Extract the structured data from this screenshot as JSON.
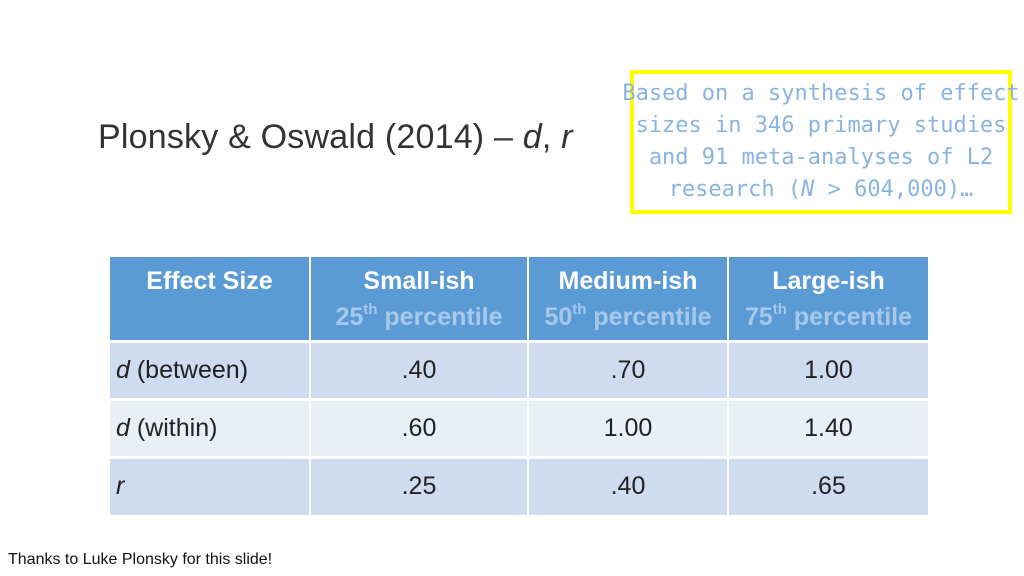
{
  "title": {
    "main": "Plonsky & Oswald (2014) – ",
    "d": "d",
    "sep": ", ",
    "r": "r"
  },
  "callout": {
    "line1": "Based on a synthesis of effect",
    "line2": "sizes in 346 primary studies",
    "line3": "and 91 meta-analyses of L2",
    "line4_pre": "research (",
    "line4_n": "N",
    "line4_post": " > 604,000)…",
    "border_color": "#ffff00",
    "text_color": "#8ab4e0"
  },
  "table": {
    "header": {
      "col0": "Effect Size",
      "col1_label": "Small-ish",
      "col1_num": "25",
      "col1_sup": "th",
      "col1_word": " percentile",
      "col2_label": "Medium-ish",
      "col2_num": "50",
      "col2_sup": "th",
      "col2_word": " percentile",
      "col3_label": "Large-ish",
      "col3_num": "75",
      "col3_sup": "th",
      "col3_word": " percentile"
    },
    "rows": [
      {
        "symbol": "d",
        "rest": " (between)",
        "small": ".40",
        "medium": ".70",
        "large": "1.00"
      },
      {
        "symbol": "d",
        "rest": " (within)",
        "small": ".60",
        "medium": "1.00",
        "large": "1.40"
      },
      {
        "symbol": "r",
        "rest": "",
        "small": ".25",
        "medium": ".40",
        "large": ".65"
      }
    ],
    "header_color": "#5b9bd5",
    "row_dark_color": "#cfdbee",
    "row_light_color": "#e9eff7"
  },
  "footer": "Thanks to Luke Plonsky for this slide!"
}
